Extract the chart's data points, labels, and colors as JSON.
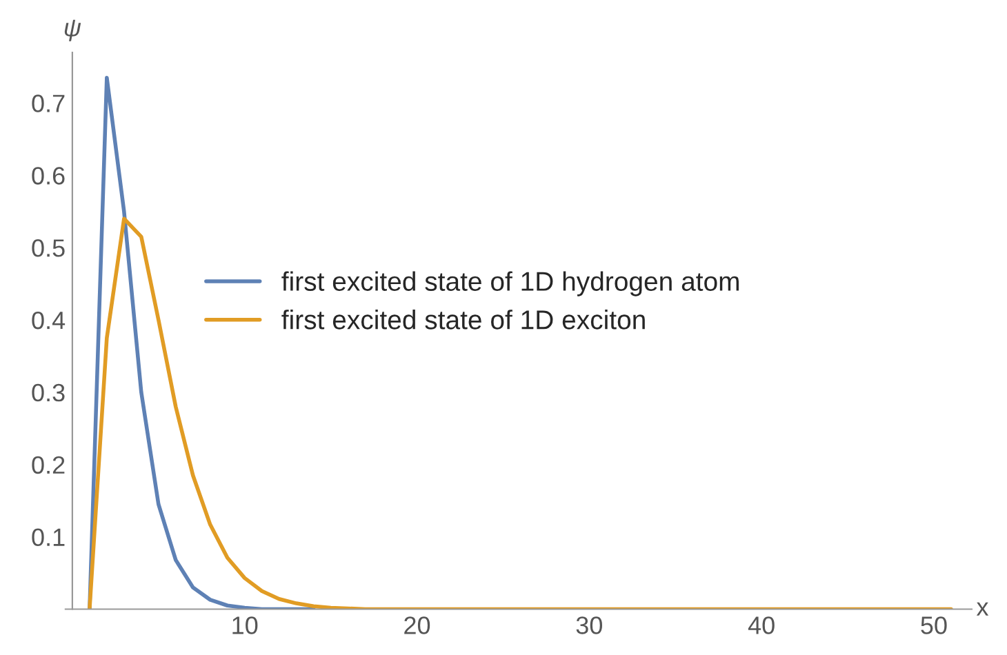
{
  "chart_data": {
    "type": "line",
    "xlabel": "x",
    "ylabel": "ψ",
    "x": [
      1,
      2,
      3,
      4,
      5,
      6,
      7,
      8,
      9,
      10,
      11,
      12,
      13,
      14,
      15,
      16,
      17,
      18,
      19,
      20,
      21,
      22,
      23,
      24,
      25,
      26,
      27,
      28,
      29,
      30,
      31,
      32,
      33,
      34,
      35,
      36,
      37,
      38,
      39,
      40,
      41,
      42,
      43,
      44,
      45,
      46,
      47,
      48,
      49,
      50,
      51
    ],
    "series": [
      {
        "name": "first excited state of 1D hydrogen atom",
        "color": "#5e81b5",
        "values": [
          0,
          0.735,
          0.55,
          0.3,
          0.145,
          0.068,
          0.03,
          0.013,
          0.005,
          0.002,
          0,
          0,
          0,
          0,
          null,
          null,
          null,
          null,
          null,
          null,
          null,
          null,
          null,
          null,
          null,
          null,
          null,
          null,
          null,
          null,
          null,
          null,
          null,
          null,
          null,
          null,
          null,
          null,
          null,
          null,
          null,
          null,
          null,
          null,
          null,
          null,
          null,
          null,
          null,
          null,
          null
        ]
      },
      {
        "name": "first excited state of 1D exciton",
        "color": "#e19c24",
        "values": [
          0,
          0.375,
          0.54,
          0.515,
          0.4,
          0.28,
          0.185,
          0.117,
          0.071,
          0.043,
          0.025,
          0.014,
          0.008,
          0.004,
          0.002,
          0.001,
          0,
          0,
          0,
          0,
          0,
          0,
          0,
          0,
          0,
          0,
          0,
          0,
          0,
          0,
          0,
          0,
          0,
          0,
          0,
          0,
          0,
          0,
          0,
          0,
          0,
          0,
          0,
          0,
          0,
          0,
          0,
          0,
          0,
          0,
          0
        ]
      }
    ],
    "xlim": [
      -0.4,
      52.2
    ],
    "ylim": [
      0,
      0.77
    ],
    "xticks": [
      10,
      20,
      30,
      40,
      50
    ],
    "yticks": [
      0.1,
      0.2,
      0.3,
      0.4,
      0.5,
      0.6,
      0.7
    ],
    "grid": false,
    "legend": "center",
    "marker": "none",
    "line_style": "solid"
  }
}
